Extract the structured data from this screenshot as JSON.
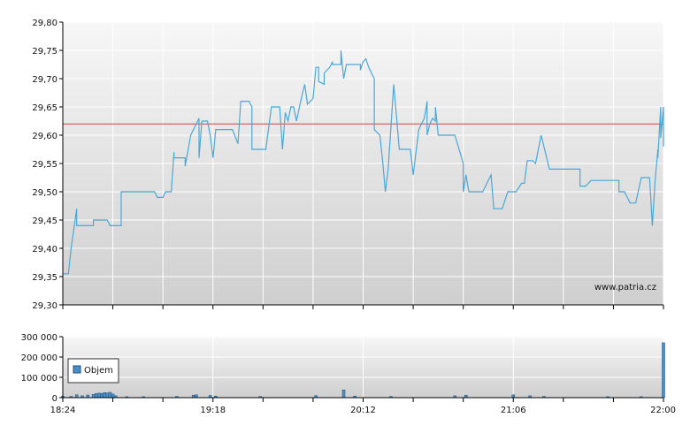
{
  "chart_data": [
    {
      "type": "line",
      "name": "price",
      "y_ticks": [
        "29,30",
        "29,35",
        "29,40",
        "29,45",
        "29,50",
        "29,55",
        "29,60",
        "29,65",
        "29,70",
        "29,75",
        "29,80"
      ],
      "ylim": [
        29.3,
        29.8
      ],
      "xlim": [
        "18:24",
        "22:00"
      ],
      "reference_line": 29.62,
      "watermark": "www.patria.cz",
      "grid": true,
      "colors": {
        "line": "#4aa8d8",
        "reference": "#e03a3a",
        "grid": "#ffffff",
        "axis": "#000000"
      },
      "points": [
        [
          "18:24",
          29.355
        ],
        [
          "18:26",
          29.355
        ],
        [
          "18:27",
          29.4
        ],
        [
          "18:29",
          29.47
        ],
        [
          "18:29",
          29.44
        ],
        [
          "18:33",
          29.44
        ],
        [
          "18:35",
          29.44
        ],
        [
          "18:35",
          29.45
        ],
        [
          "18:40",
          29.45
        ],
        [
          "18:41",
          29.44
        ],
        [
          "18:45",
          29.44
        ],
        [
          "18:45",
          29.5
        ],
        [
          "18:57",
          29.5
        ],
        [
          "18:58",
          29.49
        ],
        [
          "19:00",
          29.49
        ],
        [
          "19:01",
          29.5
        ],
        [
          "19:03",
          29.5
        ],
        [
          "19:04",
          29.57
        ],
        [
          "19:04",
          29.56
        ],
        [
          "19:08",
          29.56
        ],
        [
          "19:08",
          29.545
        ],
        [
          "19:10",
          29.6
        ],
        [
          "19:11",
          29.61
        ],
        [
          "19:13",
          29.63
        ],
        [
          "19:13",
          29.56
        ],
        [
          "19:14",
          29.625
        ],
        [
          "19:16",
          29.625
        ],
        [
          "19:17",
          29.6
        ],
        [
          "19:18",
          29.56
        ],
        [
          "19:19",
          29.61
        ],
        [
          "19:25",
          29.61
        ],
        [
          "19:27",
          29.585
        ],
        [
          "19:28",
          29.66
        ],
        [
          "19:31",
          29.66
        ],
        [
          "19:32",
          29.65
        ],
        [
          "19:32",
          29.575
        ],
        [
          "19:37",
          29.575
        ],
        [
          "19:39",
          29.65
        ],
        [
          "19:42",
          29.65
        ],
        [
          "19:43",
          29.575
        ],
        [
          "19:44",
          29.64
        ],
        [
          "19:45",
          29.625
        ],
        [
          "19:46",
          29.65
        ],
        [
          "19:47",
          29.65
        ],
        [
          "19:48",
          29.625
        ],
        [
          "19:50",
          29.67
        ],
        [
          "19:51",
          29.69
        ],
        [
          "19:52",
          29.655
        ],
        [
          "19:54",
          29.665
        ],
        [
          "19:55",
          29.72
        ],
        [
          "19:56",
          29.72
        ],
        [
          "19:56",
          29.695
        ],
        [
          "19:58",
          29.69
        ],
        [
          "19:58",
          29.71
        ],
        [
          "20:00",
          29.72
        ],
        [
          "20:01",
          29.73
        ],
        [
          "20:01",
          29.725
        ],
        [
          "20:04",
          29.725
        ],
        [
          "20:04",
          29.75
        ],
        [
          "20:05",
          29.7
        ],
        [
          "20:05",
          29.7
        ],
        [
          "20:06",
          29.725
        ],
        [
          "20:11",
          29.725
        ],
        [
          "20:11",
          29.715
        ],
        [
          "20:12",
          29.73
        ],
        [
          "20:13",
          29.735
        ],
        [
          "20:14",
          29.72
        ],
        [
          "20:16",
          29.7
        ],
        [
          "20:16",
          29.61
        ],
        [
          "20:18",
          29.6
        ],
        [
          "20:19",
          29.555
        ],
        [
          "20:19",
          29.555
        ],
        [
          "20:20",
          29.5
        ],
        [
          "20:20",
          29.5
        ],
        [
          "20:21",
          29.54
        ],
        [
          "20:23",
          29.69
        ],
        [
          "20:25",
          29.575
        ],
        [
          "20:29",
          29.575
        ],
        [
          "20:30",
          29.53
        ],
        [
          "20:32",
          29.61
        ],
        [
          "20:34",
          29.63
        ],
        [
          "20:35",
          29.66
        ],
        [
          "20:35",
          29.6
        ],
        [
          "20:36",
          29.62
        ],
        [
          "20:37",
          29.63
        ],
        [
          "20:38",
          29.625
        ],
        [
          "20:38",
          29.65
        ],
        [
          "20:39",
          29.6
        ],
        [
          "20:45",
          29.6
        ],
        [
          "20:48",
          29.55
        ],
        [
          "20:48",
          29.5
        ],
        [
          "20:49",
          29.53
        ],
        [
          "20:50",
          29.5
        ],
        [
          "20:55",
          29.5
        ],
        [
          "20:58",
          29.53
        ],
        [
          "20:59",
          29.47
        ],
        [
          "21:02",
          29.47
        ],
        [
          "21:04",
          29.5
        ],
        [
          "21:07",
          29.5
        ],
        [
          "21:09",
          29.515
        ],
        [
          "21:10",
          29.515
        ],
        [
          "21:11",
          29.555
        ],
        [
          "21:13",
          29.555
        ],
        [
          "21:14",
          29.55
        ],
        [
          "21:16",
          29.6
        ],
        [
          "21:19",
          29.54
        ],
        [
          "21:30",
          29.54
        ],
        [
          "21:30",
          29.51
        ],
        [
          "21:32",
          29.51
        ],
        [
          "21:34",
          29.52
        ],
        [
          "21:44",
          29.52
        ],
        [
          "21:44",
          29.5
        ],
        [
          "21:46",
          29.5
        ],
        [
          "21:47",
          29.49
        ],
        [
          "21:48",
          29.48
        ],
        [
          "21:50",
          29.48
        ],
        [
          "21:52",
          29.525
        ],
        [
          "21:55",
          29.525
        ],
        [
          "21:56",
          29.44
        ],
        [
          "21:57",
          29.52
        ],
        [
          "21:58",
          29.575
        ],
        [
          "21:58",
          29.56
        ],
        [
          "21:59",
          29.65
        ],
        [
          "21:59",
          29.595
        ],
        [
          "22:00",
          29.65
        ],
        [
          "22:00",
          29.625
        ],
        [
          "22:00",
          29.59
        ],
        [
          "22:00",
          29.58
        ]
      ]
    },
    {
      "type": "bar",
      "name": "volume",
      "legend": "Objem",
      "legend_position": "top-left",
      "y_ticks": [
        "0",
        "100 000",
        "200 000",
        "300 000"
      ],
      "ylim": [
        0,
        300000
      ],
      "x_ticks": [
        "18:24",
        "19:18",
        "20:12",
        "21:06",
        "22:00"
      ],
      "xlim": [
        "18:24",
        "22:00"
      ],
      "grid": true,
      "colors": {
        "bar": "#4a90c8",
        "bar_border": "#1d4e7c"
      },
      "bars": [
        [
          "18:24",
          8000
        ],
        [
          "18:27",
          6000
        ],
        [
          "18:29",
          14000
        ],
        [
          "18:31",
          9000
        ],
        [
          "18:33",
          13000
        ],
        [
          "18:35",
          16000
        ],
        [
          "18:36",
          20000
        ],
        [
          "18:37",
          22000
        ],
        [
          "18:38",
          21000
        ],
        [
          "18:39",
          25000
        ],
        [
          "18:40",
          23000
        ],
        [
          "18:41",
          26000
        ],
        [
          "18:42",
          18000
        ],
        [
          "18:43",
          9000
        ],
        [
          "18:47",
          5000
        ],
        [
          "18:53",
          5000
        ],
        [
          "19:05",
          6000
        ],
        [
          "19:11",
          12000
        ],
        [
          "19:12",
          14000
        ],
        [
          "19:17",
          11000
        ],
        [
          "19:19",
          8000
        ],
        [
          "19:35",
          6000
        ],
        [
          "19:55",
          10000
        ],
        [
          "20:05",
          38000
        ],
        [
          "20:09",
          8000
        ],
        [
          "20:22",
          6000
        ],
        [
          "20:45",
          9000
        ],
        [
          "20:49",
          12000
        ],
        [
          "21:06",
          14000
        ],
        [
          "21:12",
          9000
        ],
        [
          "21:17",
          6000
        ],
        [
          "21:40",
          5000
        ],
        [
          "21:52",
          5000
        ],
        [
          "22:00",
          270000
        ]
      ]
    }
  ]
}
